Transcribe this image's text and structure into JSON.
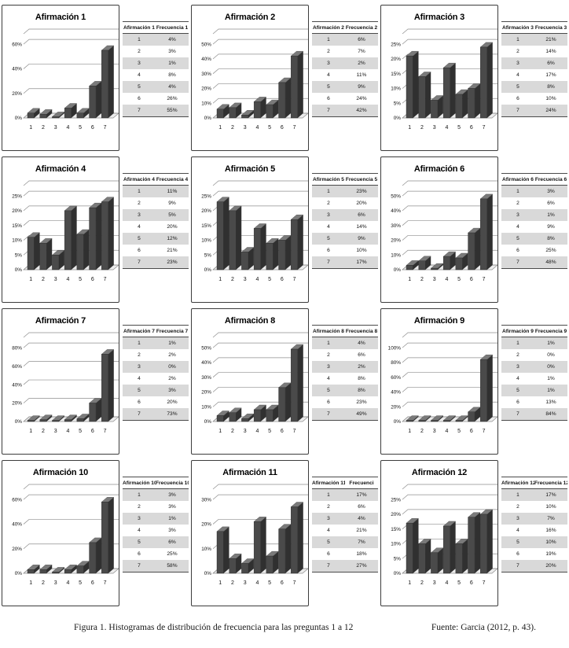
{
  "caption": {
    "figure": "Figura 1. Histogramas de distribución de frecuencia para las preguntas 1 a 12",
    "source": "Fuente: Garcia (2012, p. 43)."
  },
  "colors": {
    "bar_front": "#4a4a4a",
    "bar_top": "#7a7a7a",
    "bar_side": "#303030",
    "gridline": "#8f8f8f",
    "floor_fill": "#ececec",
    "row_shade": "#d9d9d9"
  },
  "chart_data": [
    {
      "type": "bar",
      "title": "Afirmación 1",
      "table_header": [
        "Afirmación 1",
        "Frecuencia 1"
      ],
      "categories": [
        "1",
        "2",
        "3",
        "4",
        "5",
        "6",
        "7"
      ],
      "values": [
        4,
        3,
        1,
        8,
        4,
        26,
        55
      ],
      "ylabel": "",
      "ylim": [
        0,
        60
      ],
      "yticks": [
        0,
        20,
        40,
        60
      ],
      "grid": true
    },
    {
      "type": "bar",
      "title": "Afirmación 2",
      "table_header": [
        "Afirmación 2",
        "Frecuencia 2"
      ],
      "categories": [
        "1",
        "2",
        "3",
        "4",
        "5",
        "6",
        "7"
      ],
      "values": [
        6,
        7,
        2,
        11,
        9,
        24,
        42
      ],
      "ylabel": "",
      "ylim": [
        0,
        50
      ],
      "yticks": [
        0,
        10,
        20,
        30,
        40,
        50
      ],
      "grid": true
    },
    {
      "type": "bar",
      "title": "Afirmación 3",
      "table_header": [
        "Afirmación 3",
        "Frecuencia 3"
      ],
      "categories": [
        "1",
        "2",
        "3",
        "4",
        "5",
        "6",
        "7"
      ],
      "values": [
        21,
        14,
        6,
        17,
        8,
        10,
        24
      ],
      "ylabel": "",
      "ylim": [
        0,
        25
      ],
      "yticks": [
        0,
        5,
        10,
        15,
        20,
        25
      ],
      "grid": true
    },
    {
      "type": "bar",
      "title": "Afirmación 4",
      "table_header": [
        "Afirmación 4",
        "Frecuencia 4"
      ],
      "categories": [
        "1",
        "2",
        "3",
        "4",
        "5",
        "6",
        "7"
      ],
      "values": [
        11,
        9,
        5,
        20,
        12,
        21,
        23
      ],
      "ylabel": "",
      "ylim": [
        0,
        25
      ],
      "yticks": [
        0,
        5,
        10,
        15,
        20,
        25
      ],
      "grid": true
    },
    {
      "type": "bar",
      "title": "Afirmación 5",
      "table_header": [
        "Afirmación 5",
        "Frecuencia 5"
      ],
      "categories": [
        "1",
        "2",
        "3",
        "4",
        "5",
        "6",
        "7"
      ],
      "values": [
        23,
        20,
        6,
        14,
        9,
        10,
        17
      ],
      "ylabel": "",
      "ylim": [
        0,
        25
      ],
      "yticks": [
        0,
        5,
        10,
        15,
        20,
        25
      ],
      "grid": true
    },
    {
      "type": "bar",
      "title": "Afirmación 6",
      "table_header": [
        "Afirmación 6",
        "Frecuencia 6"
      ],
      "categories": [
        "1",
        "2",
        "3",
        "4",
        "5",
        "6",
        "7"
      ],
      "values": [
        3,
        6,
        1,
        9,
        8,
        25,
        48
      ],
      "ylabel": "",
      "ylim": [
        0,
        50
      ],
      "yticks": [
        0,
        10,
        20,
        30,
        40,
        50
      ],
      "grid": true
    },
    {
      "type": "bar",
      "title": "Afirmación 7",
      "table_header": [
        "Afirmación 7",
        "Frecuencia 7"
      ],
      "categories": [
        "1",
        "2",
        "3",
        "4",
        "5",
        "6",
        "7"
      ],
      "values": [
        1,
        2,
        0,
        2,
        3,
        20,
        73
      ],
      "ylabel": "",
      "ylim": [
        0,
        80
      ],
      "yticks": [
        0,
        20,
        40,
        60,
        80
      ],
      "grid": true
    },
    {
      "type": "bar",
      "title": "Afirmación 8",
      "table_header": [
        "Afirmación 8",
        "Frecuencia 8"
      ],
      "categories": [
        "1",
        "2",
        "3",
        "4",
        "5",
        "6",
        "7"
      ],
      "values": [
        4,
        6,
        2,
        8,
        8,
        23,
        49
      ],
      "ylabel": "",
      "ylim": [
        0,
        50
      ],
      "yticks": [
        0,
        10,
        20,
        30,
        40,
        50
      ],
      "grid": true
    },
    {
      "type": "bar",
      "title": "Afirmación 9",
      "table_header": [
        "Afirmación 9",
        "Frecuencia 9"
      ],
      "categories": [
        "1",
        "2",
        "3",
        "4",
        "5",
        "6",
        "7"
      ],
      "values": [
        1,
        0,
        0,
        1,
        1,
        13,
        84
      ],
      "ylabel": "",
      "ylim": [
        0,
        100
      ],
      "yticks": [
        0,
        20,
        40,
        60,
        80,
        100
      ],
      "grid": true
    },
    {
      "type": "bar",
      "title": "Afirmación 10",
      "table_header": [
        "Afirmación 10",
        "Frecuencia 10"
      ],
      "categories": [
        "1",
        "2",
        "3",
        "4",
        "5",
        "6",
        "7"
      ],
      "values": [
        3,
        3,
        1,
        3,
        6,
        25,
        58
      ],
      "ylabel": "",
      "ylim": [
        0,
        60
      ],
      "yticks": [
        0,
        20,
        40,
        60
      ],
      "grid": true
    },
    {
      "type": "bar",
      "title": "Afirmación 11",
      "table_header": [
        "Afirmación 11",
        "Frecuenci"
      ],
      "categories": [
        "1",
        "2",
        "3",
        "4",
        "5",
        "6",
        "7"
      ],
      "values": [
        17,
        6,
        4,
        21,
        7,
        18,
        27
      ],
      "ylabel": "",
      "ylim": [
        0,
        30
      ],
      "yticks": [
        0,
        10,
        20,
        30
      ],
      "grid": true
    },
    {
      "type": "bar",
      "title": "Afirmación 12",
      "table_header": [
        "Afirmación 12",
        "Frecuencia 12"
      ],
      "categories": [
        "1",
        "2",
        "3",
        "4",
        "5",
        "6",
        "7"
      ],
      "values": [
        17,
        10,
        7,
        16,
        10,
        19,
        20
      ],
      "ylabel": "",
      "ylim": [
        0,
        25
      ],
      "yticks": [
        0,
        5,
        10,
        15,
        20,
        25
      ],
      "grid": true
    }
  ]
}
